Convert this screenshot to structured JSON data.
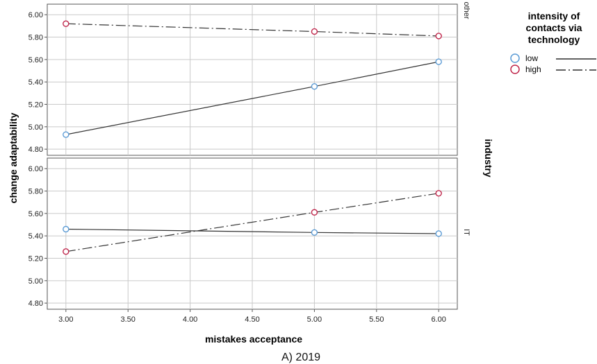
{
  "chart_data": {
    "type": "line",
    "caption": "A) 2019",
    "xlabel": "mistakes acceptance",
    "ylabel": "change adaptability",
    "facet_label": "industry",
    "x_ticks": [
      "3.00",
      "3.50",
      "4.00",
      "4.50",
      "5.00",
      "5.50",
      "6.00"
    ],
    "xlim": [
      2.85,
      6.15
    ],
    "y_ticks": [
      "4.80",
      "5.00",
      "5.20",
      "5.40",
      "5.60",
      "5.80",
      "6.00"
    ],
    "ylim": [
      4.77,
      6.02
    ],
    "grid": true,
    "legend": {
      "title_lines": [
        "intensity of",
        "contacts via",
        "technology"
      ],
      "placement": "right",
      "entries": [
        {
          "label": "low",
          "marker_color": "#5b9bd5",
          "dash": "solid"
        },
        {
          "label": "high",
          "marker_color": "#c0264b",
          "dash": "dash-dot"
        }
      ]
    },
    "panels": [
      {
        "strip": "other",
        "series": [
          {
            "name": "low",
            "x": [
              3.0,
              5.0,
              6.0
            ],
            "y": [
              4.93,
              5.36,
              5.58
            ]
          },
          {
            "name": "high",
            "x": [
              3.0,
              5.0,
              6.0
            ],
            "y": [
              5.92,
              5.85,
              5.81
            ]
          }
        ]
      },
      {
        "strip": "IT",
        "series": [
          {
            "name": "low",
            "x": [
              3.0,
              5.0,
              6.0
            ],
            "y": [
              5.46,
              5.43,
              5.42
            ]
          },
          {
            "name": "high",
            "x": [
              3.0,
              5.0,
              6.0
            ],
            "y": [
              5.26,
              5.61,
              5.78
            ]
          }
        ]
      }
    ]
  }
}
